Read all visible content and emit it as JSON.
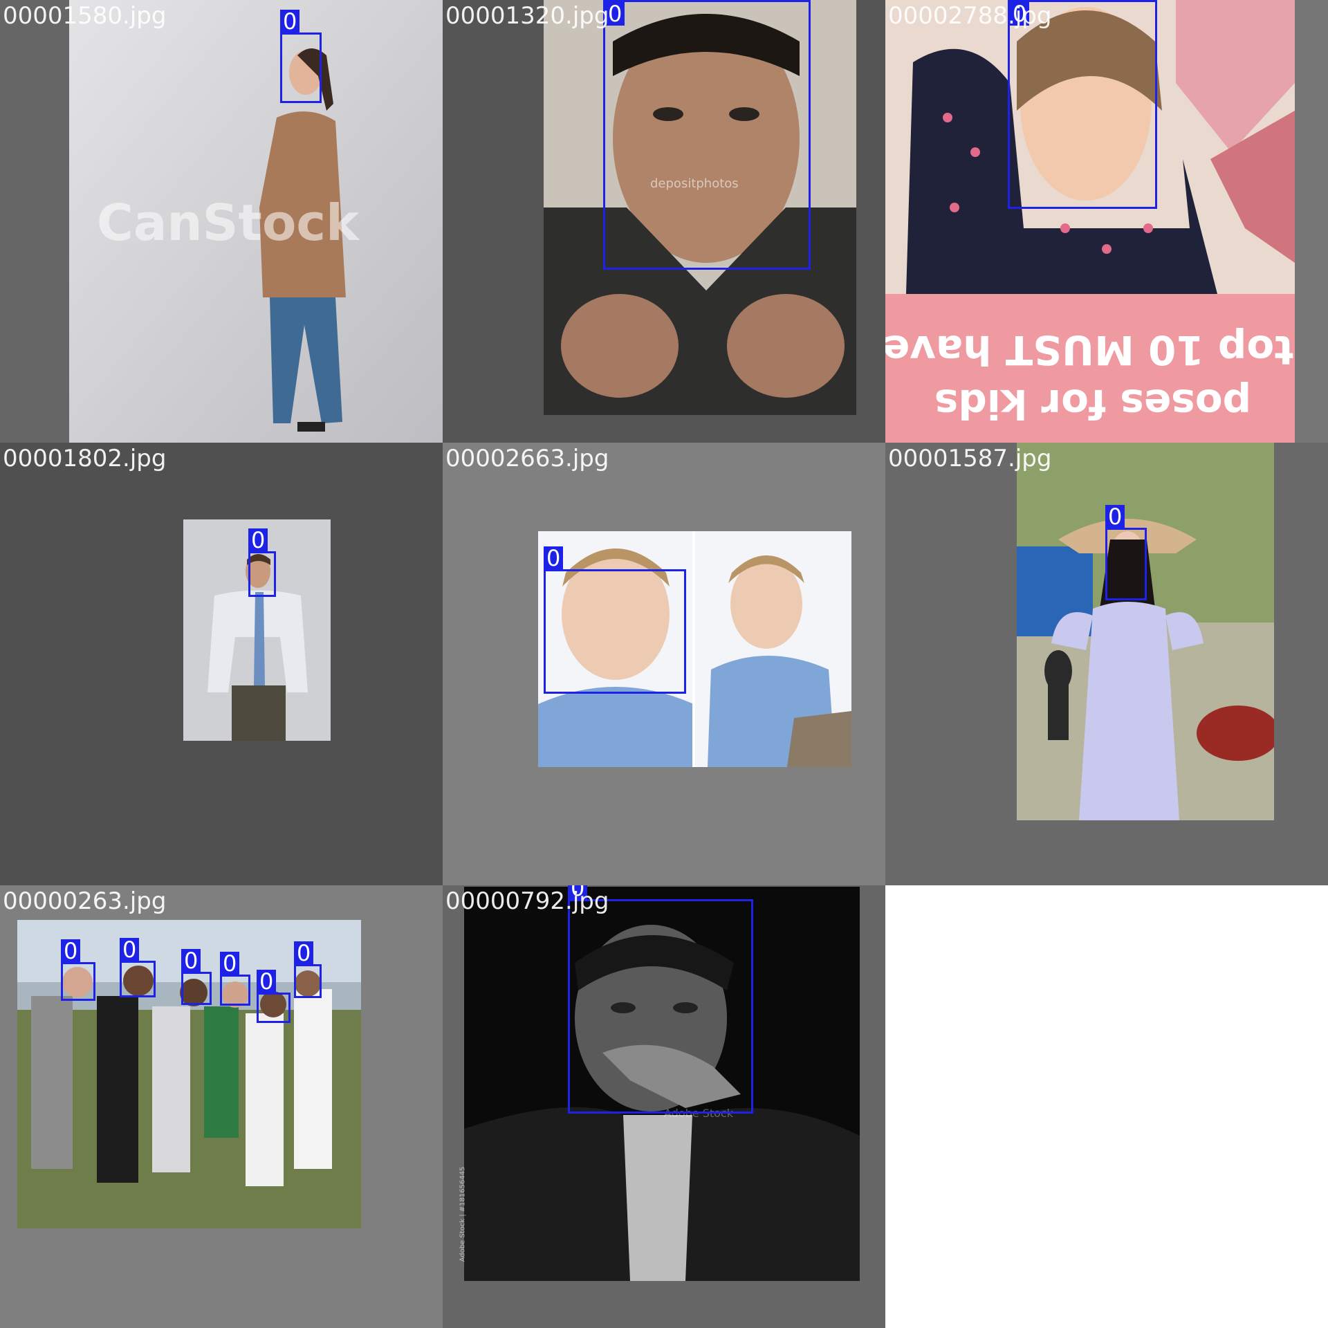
{
  "grid": {
    "background": "#ffffff",
    "box_color": "#1d22e6",
    "tiles": [
      {
        "filename": "00001580.jpg",
        "box_label": "0",
        "watermark": "CanStock",
        "background_color": "#666666"
      },
      {
        "filename": "00001320.jpg",
        "box_label": "0",
        "watermark": "depositphotos",
        "background_color": "#555555"
      },
      {
        "filename": "00002788.jpg",
        "box_label": "0",
        "background_color": "#777777",
        "banner_line_1": "top 10 MUST have",
        "banner_line_2": "poses for kids"
      },
      {
        "filename": "00001802.jpg",
        "box_label": "0",
        "background_color": "#505050"
      },
      {
        "filename": "00002663.jpg",
        "box_label": "0",
        "background_color": "#808080"
      },
      {
        "filename": "00001587.jpg",
        "box_label": "0",
        "background_color": "#696969"
      },
      {
        "filename": "00000263.jpg",
        "box_labels": [
          "0",
          "0",
          "0",
          "0",
          "0",
          "0"
        ],
        "background_color": "#7f7f7f"
      },
      {
        "filename": "00000792.jpg",
        "box_label": "0",
        "watermark": "Adobe Stock",
        "side_text": "Adobe Stock | #181656445",
        "background_color": "#666666"
      }
    ]
  }
}
